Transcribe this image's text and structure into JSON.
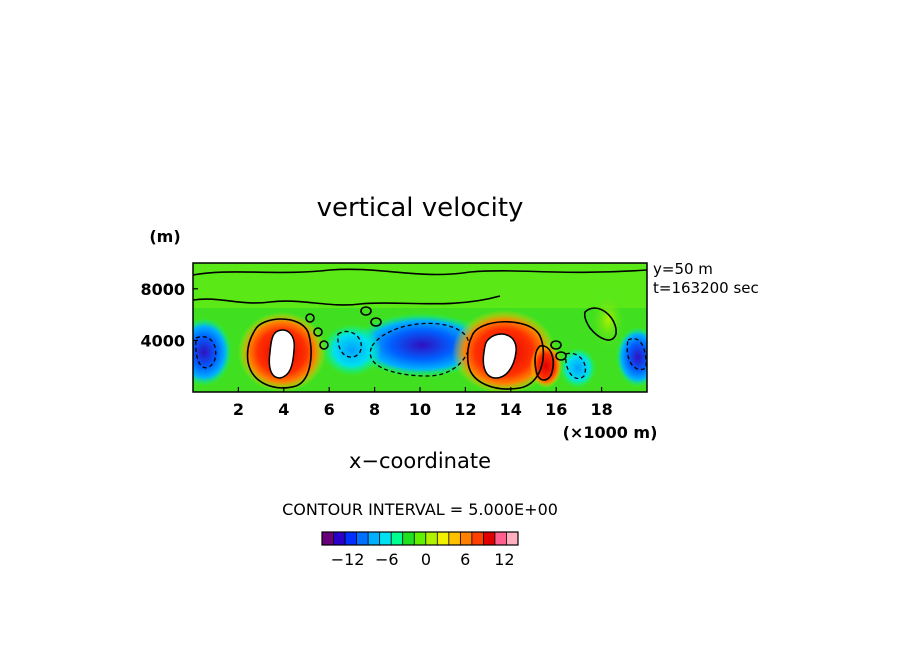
{
  "chart_data": {
    "type": "heatmap",
    "title": "vertical velocity",
    "xlabel": "x−coordinate",
    "x_unit": "(×1000 m)",
    "y_unit": "(m)",
    "annotations": [
      "y=50 m",
      "t=163200 sec"
    ],
    "xlim": [
      0,
      20
    ],
    "ylim": [
      0,
      10000
    ],
    "x_ticks": [
      2,
      4,
      6,
      8,
      10,
      12,
      14,
      16,
      18
    ],
    "y_ticks": [
      4000,
      8000
    ],
    "contour_interval_label": "CONTOUR INTERVAL = 5.000E+00",
    "colorbar": {
      "tick_labels": [
        "−12",
        "−6",
        "0",
        "6",
        "12"
      ],
      "tick_values": [
        -12,
        -6,
        0,
        6,
        12
      ],
      "colors": [
        "#6a007a",
        "#2a00c8",
        "#0030ff",
        "#0070ff",
        "#00b0ff",
        "#00e0f0",
        "#00ff90",
        "#20e020",
        "#60f000",
        "#b0f000",
        "#f0f000",
        "#ffc000",
        "#ff8000",
        "#ff4000",
        "#e00000",
        "#ff6090",
        "#ffb0c0"
      ]
    },
    "features": [
      {
        "kind": "updraft-core",
        "x": 4.0,
        "y": 2600,
        "value": 15
      },
      {
        "kind": "updraft-core",
        "x": 14.0,
        "y": 2600,
        "value": 15
      },
      {
        "kind": "updraft",
        "x": 15.6,
        "y": 2200,
        "value": 8
      },
      {
        "kind": "downdraft",
        "x": 10.3,
        "y": 3800,
        "value": -14
      },
      {
        "kind": "downdraft",
        "x": 7.5,
        "y": 3000,
        "value": -6
      },
      {
        "kind": "downdraft",
        "x": 0.5,
        "y": 3500,
        "value": -8
      },
      {
        "kind": "downdraft",
        "x": 19.6,
        "y": 3000,
        "value": -9
      }
    ]
  }
}
